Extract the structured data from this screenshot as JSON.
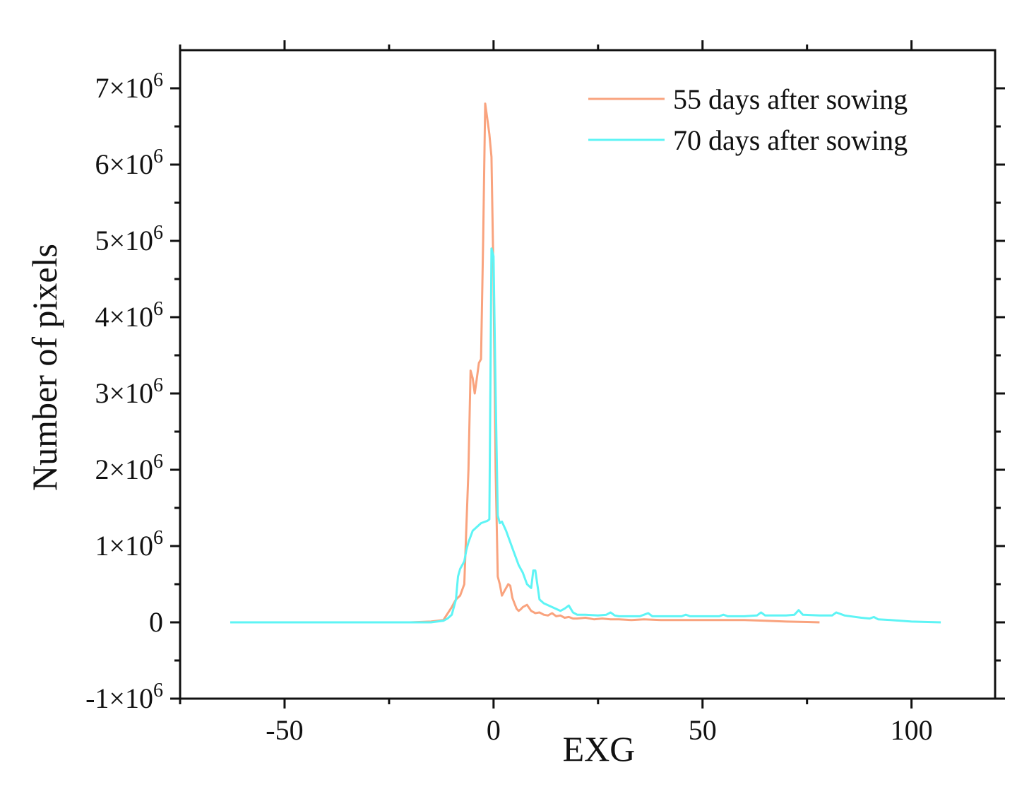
{
  "chart_data": {
    "type": "line",
    "xlabel": "EXG",
    "ylabel": "Number of pixels",
    "xlim": [
      -75,
      120
    ],
    "ylim": [
      -1000000,
      7500000
    ],
    "x_ticks": [
      {
        "value": -50,
        "label": "-50"
      },
      {
        "value": 0,
        "label": "0"
      },
      {
        "value": 50,
        "label": "50"
      },
      {
        "value": 100,
        "label": "100"
      }
    ],
    "x_minor_ticks": [
      -75,
      -25,
      25,
      75
    ],
    "y_ticks": [
      {
        "value": -1000000,
        "mantissa": "-1×10",
        "exp": "6"
      },
      {
        "value": 0,
        "mantissa": "0",
        "exp": ""
      },
      {
        "value": 1000000,
        "mantissa": "1×10",
        "exp": "6"
      },
      {
        "value": 2000000,
        "mantissa": "2×10",
        "exp": "6"
      },
      {
        "value": 3000000,
        "mantissa": "3×10",
        "exp": "6"
      },
      {
        "value": 4000000,
        "mantissa": "4×10",
        "exp": "6"
      },
      {
        "value": 5000000,
        "mantissa": "5×10",
        "exp": "6"
      },
      {
        "value": 6000000,
        "mantissa": "6×10",
        "exp": "6"
      },
      {
        "value": 7000000,
        "mantissa": "7×10",
        "exp": "6"
      }
    ],
    "y_minor_ticks": [
      -500000,
      500000,
      1500000,
      2500000,
      3500000,
      4500000,
      5500000,
      6500000
    ],
    "grid": false,
    "legend_position": "top-right",
    "series": [
      {
        "name": "55 days after sowing",
        "color": "#f9a37e",
        "x": [
          -63,
          -50,
          -40,
          -30,
          -20,
          -15,
          -12,
          -10,
          -9,
          -8,
          -7,
          -6,
          -5.5,
          -5,
          -4.5,
          -4,
          -3.5,
          -3,
          -2.5,
          -2,
          -1.5,
          -1,
          -0.5,
          0,
          0.5,
          1,
          1.5,
          2,
          2.5,
          3,
          3.5,
          4,
          4.5,
          5,
          5.5,
          6,
          6.5,
          7,
          8,
          9,
          10,
          11,
          12,
          13,
          14,
          15,
          16,
          17,
          18,
          19,
          20,
          22,
          24,
          26,
          28,
          30,
          33,
          36,
          40,
          45,
          50,
          55,
          60,
          65,
          70,
          75,
          78
        ],
        "y": [
          0,
          0,
          0,
          0,
          0,
          10000,
          30000,
          200000,
          300000,
          350000,
          500000,
          2000000,
          3300000,
          3200000,
          3000000,
          3200000,
          3400000,
          3450000,
          5000000,
          6800000,
          6600000,
          6400000,
          6100000,
          4500000,
          2000000,
          600000,
          500000,
          350000,
          400000,
          450000,
          500000,
          480000,
          320000,
          250000,
          180000,
          150000,
          170000,
          200000,
          230000,
          150000,
          120000,
          130000,
          100000,
          90000,
          120000,
          80000,
          90000,
          60000,
          70000,
          50000,
          50000,
          60000,
          40000,
          50000,
          40000,
          40000,
          30000,
          40000,
          30000,
          30000,
          30000,
          30000,
          30000,
          20000,
          10000,
          5000,
          0
        ]
      },
      {
        "name": "70 days after sowing",
        "color": "#5ef4f5",
        "x": [
          -63,
          -50,
          -40,
          -30,
          -20,
          -15,
          -12,
          -11,
          -10,
          -9,
          -8.5,
          -8,
          -7.5,
          -7,
          -6.5,
          -6,
          -5,
          -4,
          -3,
          -2,
          -1.5,
          -1,
          -0.5,
          0,
          0.5,
          1,
          1.5,
          2,
          3,
          4,
          5,
          6,
          7,
          8,
          9,
          9.5,
          10,
          11,
          12,
          14,
          16,
          17,
          18,
          19,
          20,
          22,
          25,
          27,
          28,
          29,
          30,
          35,
          36,
          37,
          38,
          40,
          45,
          46,
          47,
          50,
          54,
          55,
          56,
          60,
          63,
          64,
          65,
          70,
          72,
          73,
          74,
          78,
          81,
          82,
          84,
          88,
          90,
          91,
          92,
          95,
          100,
          107
        ],
        "y": [
          0,
          0,
          0,
          0,
          0,
          0,
          20000,
          50000,
          100000,
          300000,
          600000,
          700000,
          750000,
          800000,
          950000,
          1050000,
          1200000,
          1250000,
          1300000,
          1320000,
          1330000,
          1350000,
          4900000,
          4800000,
          3000000,
          1400000,
          1300000,
          1320000,
          1200000,
          1050000,
          900000,
          750000,
          650000,
          500000,
          450000,
          680000,
          680000,
          300000,
          250000,
          200000,
          150000,
          180000,
          220000,
          130000,
          100000,
          100000,
          90000,
          100000,
          130000,
          90000,
          80000,
          80000,
          100000,
          120000,
          80000,
          80000,
          80000,
          100000,
          80000,
          80000,
          80000,
          100000,
          80000,
          80000,
          90000,
          130000,
          90000,
          90000,
          100000,
          160000,
          100000,
          90000,
          90000,
          130000,
          90000,
          60000,
          50000,
          70000,
          40000,
          30000,
          10000,
          0
        ]
      }
    ]
  }
}
